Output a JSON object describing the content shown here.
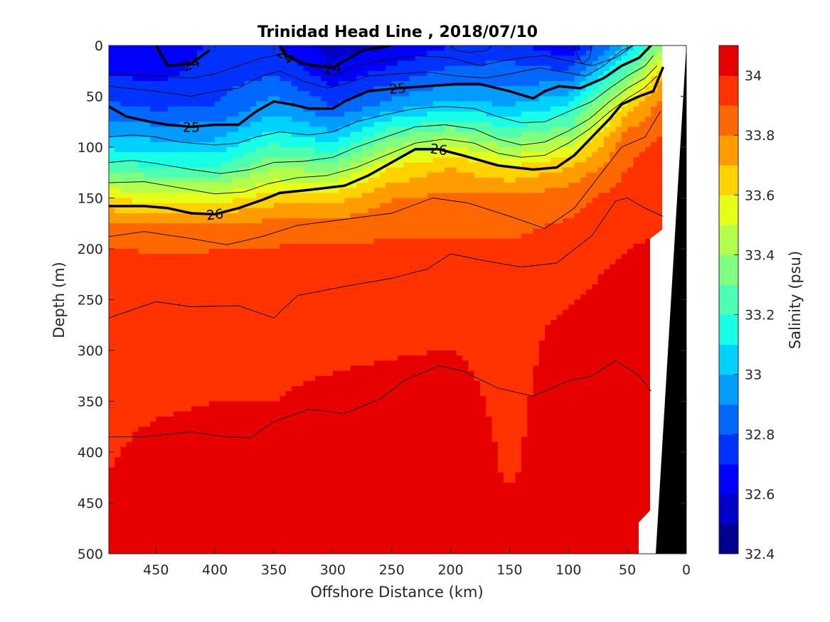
{
  "chart_data": {
    "type": "heatmap",
    "title": "Trinidad Head Line , 2018/07/10",
    "xlabel": "Offshore Distance (km)",
    "ylabel": "Depth (m)",
    "xlim": [
      490,
      0
    ],
    "x_reversed": true,
    "ylim": [
      0,
      500
    ],
    "y_reversed": true,
    "x_ticks": [
      450,
      400,
      350,
      300,
      250,
      200,
      150,
      100,
      50,
      0
    ],
    "y_ticks": [
      0,
      50,
      100,
      150,
      200,
      250,
      300,
      350,
      400,
      450,
      500
    ],
    "grid": false,
    "colorbar": {
      "label": "Salinity (psu)",
      "range": [
        32.4,
        34.1
      ],
      "levels": [
        32.4,
        32.5,
        32.6,
        32.7,
        32.8,
        32.9,
        33.0,
        33.1,
        33.2,
        33.3,
        33.4,
        33.5,
        33.6,
        33.7,
        33.8,
        33.9,
        34.0,
        34.1
      ],
      "ticks": [
        "32.4",
        "32.6",
        "32.8",
        "33",
        "33.2",
        "33.4",
        "33.6",
        "33.8",
        "34"
      ],
      "colors": [
        "#00008f",
        "#0000c8",
        "#0000ff",
        "#0032ff",
        "#0068ff",
        "#009cff",
        "#00d2ff",
        "#18ffe7",
        "#4cffb3",
        "#80ff80",
        "#b3ff4c",
        "#e7ff18",
        "#ffd200",
        "#ff9c00",
        "#ff6800",
        "#ff3200",
        "#e60000",
        "#a80000"
      ]
    },
    "salinity_depths": [
      0,
      30,
      60,
      90,
      120,
      150,
      180,
      220,
      280,
      350,
      420,
      500
    ],
    "salinity_profiles": [
      {
        "x": 490,
        "values": [
          32.65,
          32.7,
          32.82,
          33.0,
          33.25,
          33.6,
          33.85,
          33.95,
          33.96,
          33.98,
          34.0,
          34.03
        ]
      },
      {
        "x": 450,
        "values": [
          32.6,
          32.68,
          32.78,
          32.98,
          33.2,
          33.55,
          33.84,
          33.94,
          33.96,
          33.99,
          34.03,
          34.05
        ]
      },
      {
        "x": 400,
        "values": [
          32.72,
          32.75,
          32.8,
          32.98,
          33.2,
          33.55,
          33.85,
          33.94,
          33.96,
          34.0,
          34.04,
          34.06
        ]
      },
      {
        "x": 350,
        "values": [
          32.7,
          32.8,
          32.95,
          33.15,
          33.4,
          33.65,
          33.86,
          33.95,
          33.97,
          34.0,
          34.04,
          34.06
        ]
      },
      {
        "x": 300,
        "values": [
          32.55,
          32.65,
          32.8,
          33.05,
          33.35,
          33.65,
          33.87,
          33.95,
          33.97,
          34.02,
          34.05,
          34.07
        ]
      },
      {
        "x": 250,
        "values": [
          32.6,
          32.75,
          32.95,
          33.3,
          33.6,
          33.8,
          33.88,
          33.95,
          33.98,
          34.03,
          34.05,
          34.08
        ]
      },
      {
        "x": 200,
        "values": [
          32.7,
          32.85,
          33.05,
          33.4,
          33.7,
          33.82,
          33.88,
          33.95,
          33.99,
          34.03,
          34.05,
          34.08
        ]
      },
      {
        "x": 150,
        "values": [
          32.75,
          32.85,
          33.0,
          33.3,
          33.6,
          33.82,
          33.88,
          33.95,
          33.97,
          33.98,
          33.99,
          34.05
        ]
      },
      {
        "x": 100,
        "values": [
          32.6,
          32.85,
          33.1,
          33.4,
          33.7,
          33.86,
          33.92,
          33.97,
          34.02,
          34.04,
          34.05,
          34.08
        ]
      },
      {
        "x": 50,
        "values": [
          33.0,
          33.3,
          33.65,
          33.85,
          33.9,
          33.95,
          33.98,
          34.02,
          34.03,
          34.04,
          34.05,
          34.06
        ]
      },
      {
        "x": 20,
        "values": [
          33.4,
          33.7,
          33.85,
          33.9,
          33.95,
          33.98,
          34.0,
          34.02,
          34.03,
          34.04,
          34.05,
          34.06
        ]
      }
    ],
    "density_contours": [
      {
        "label": "24",
        "bold": true,
        "points": [
          [
            450,
            0
          ],
          [
            440,
            20
          ],
          [
            420,
            18
          ],
          [
            405,
            5
          ]
        ]
      },
      {
        "label": "24",
        "bold": true,
        "points": [
          [
            345,
            0
          ],
          [
            340,
            10
          ],
          [
            325,
            18
          ],
          [
            300,
            22
          ],
          [
            290,
            15
          ],
          [
            275,
            5
          ],
          [
            250,
            0
          ]
        ]
      },
      {
        "label": "24",
        "bold": false,
        "points": [
          [
            200,
            0
          ],
          [
            195,
            5
          ],
          [
            185,
            7
          ],
          [
            170,
            5
          ],
          [
            165,
            0
          ]
        ]
      },
      {
        "label": "24",
        "bold": false,
        "points": [
          [
            95,
            0
          ],
          [
            92,
            12
          ],
          [
            88,
            18
          ],
          [
            82,
            12
          ],
          [
            80,
            0
          ]
        ]
      },
      {
        "label": "25",
        "bold": true,
        "points": [
          [
            490,
            60
          ],
          [
            475,
            70
          ],
          [
            455,
            75
          ],
          [
            440,
            78
          ],
          [
            420,
            80
          ],
          [
            400,
            78
          ],
          [
            380,
            78
          ],
          [
            365,
            65
          ],
          [
            350,
            55
          ],
          [
            335,
            58
          ],
          [
            320,
            62
          ],
          [
            300,
            62
          ],
          [
            290,
            55
          ],
          [
            270,
            45
          ],
          [
            245,
            42
          ],
          [
            220,
            40
          ],
          [
            195,
            38
          ],
          [
            175,
            38
          ],
          [
            150,
            45
          ],
          [
            130,
            52
          ],
          [
            120,
            45
          ],
          [
            108,
            40
          ],
          [
            90,
            42
          ],
          [
            70,
            32
          ],
          [
            55,
            20
          ],
          [
            40,
            12
          ],
          [
            30,
            0
          ]
        ]
      },
      {
        "label": "26",
        "bold": true,
        "points": [
          [
            490,
            158
          ],
          [
            460,
            158
          ],
          [
            440,
            160
          ],
          [
            420,
            165
          ],
          [
            400,
            166
          ],
          [
            380,
            160
          ],
          [
            360,
            152
          ],
          [
            345,
            145
          ],
          [
            320,
            142
          ],
          [
            290,
            138
          ],
          [
            270,
            128
          ],
          [
            250,
            115
          ],
          [
            230,
            102
          ],
          [
            210,
            102
          ],
          [
            190,
            108
          ],
          [
            160,
            118
          ],
          [
            130,
            122
          ],
          [
            110,
            120
          ],
          [
            95,
            108
          ],
          [
            80,
            90
          ],
          [
            65,
            72
          ],
          [
            55,
            58
          ],
          [
            40,
            50
          ],
          [
            28,
            45
          ],
          [
            20,
            22
          ]
        ]
      },
      {
        "label": "",
        "bold": false,
        "points": [
          [
            490,
            188
          ],
          [
            460,
            183
          ],
          [
            420,
            190
          ],
          [
            390,
            196
          ],
          [
            360,
            188
          ],
          [
            330,
            177
          ],
          [
            290,
            171
          ],
          [
            250,
            165
          ],
          [
            215,
            150
          ],
          [
            185,
            155
          ],
          [
            150,
            168
          ],
          [
            120,
            180
          ],
          [
            95,
            160
          ],
          [
            75,
            130
          ],
          [
            55,
            100
          ],
          [
            35,
            90
          ],
          [
            22,
            65
          ]
        ]
      },
      {
        "label": "",
        "bold": false,
        "points": [
          [
            490,
            268
          ],
          [
            450,
            252
          ],
          [
            420,
            257
          ],
          [
            380,
            256
          ],
          [
            350,
            268
          ],
          [
            330,
            246
          ],
          [
            290,
            237
          ],
          [
            250,
            229
          ],
          [
            220,
            220
          ],
          [
            200,
            205
          ],
          [
            170,
            212
          ],
          [
            140,
            218
          ],
          [
            110,
            214
          ],
          [
            80,
            187
          ],
          [
            60,
            153
          ],
          [
            50,
            150
          ],
          [
            35,
            160
          ],
          [
            20,
            168
          ]
        ]
      },
      {
        "label": "",
        "bold": false,
        "points": [
          [
            490,
            385
          ],
          [
            460,
            385
          ],
          [
            420,
            380
          ],
          [
            390,
            385
          ],
          [
            370,
            386
          ],
          [
            350,
            370
          ],
          [
            320,
            358
          ],
          [
            290,
            362
          ],
          [
            260,
            348
          ],
          [
            240,
            330
          ],
          [
            210,
            315
          ],
          [
            190,
            320
          ],
          [
            160,
            337
          ],
          [
            130,
            345
          ],
          [
            100,
            330
          ],
          [
            80,
            325
          ],
          [
            60,
            310
          ],
          [
            40,
            325
          ],
          [
            30,
            340
          ]
        ]
      },
      {
        "label": "",
        "bold": false,
        "points": [
          [
            490,
            28
          ],
          [
            450,
            30
          ],
          [
            420,
            32
          ],
          [
            400,
            28
          ],
          [
            380,
            20
          ],
          [
            360,
            12
          ],
          [
            340,
            8
          ],
          [
            320,
            20
          ],
          [
            300,
            30
          ],
          [
            280,
            20
          ],
          [
            260,
            15
          ],
          [
            230,
            10
          ],
          [
            200,
            12
          ],
          [
            175,
            20
          ],
          [
            160,
            16
          ],
          [
            140,
            12
          ],
          [
            120,
            10
          ],
          [
            100,
            15
          ],
          [
            80,
            20
          ],
          [
            60,
            12
          ],
          [
            45,
            0
          ]
        ]
      },
      {
        "label": "",
        "bold": false,
        "points": [
          [
            490,
            40
          ],
          [
            450,
            45
          ],
          [
            420,
            50
          ],
          [
            400,
            45
          ],
          [
            380,
            42
          ],
          [
            360,
            30
          ],
          [
            345,
            25
          ],
          [
            325,
            35
          ],
          [
            305,
            42
          ],
          [
            290,
            38
          ],
          [
            270,
            30
          ],
          [
            245,
            28
          ],
          [
            220,
            26
          ],
          [
            195,
            30
          ],
          [
            170,
            32
          ],
          [
            150,
            28
          ],
          [
            125,
            22
          ],
          [
            105,
            26
          ],
          [
            85,
            30
          ],
          [
            70,
            20
          ],
          [
            55,
            5
          ],
          [
            45,
            0
          ]
        ]
      },
      {
        "label": "",
        "bold": false,
        "points": [
          [
            490,
            90
          ],
          [
            470,
            88
          ],
          [
            450,
            90
          ],
          [
            430,
            95
          ],
          [
            400,
            98
          ],
          [
            380,
            96
          ],
          [
            365,
            90
          ],
          [
            345,
            85
          ],
          [
            320,
            88
          ],
          [
            300,
            85
          ],
          [
            280,
            75
          ],
          [
            255,
            68
          ],
          [
            230,
            62
          ],
          [
            205,
            60
          ],
          [
            180,
            62
          ],
          [
            160,
            70
          ],
          [
            140,
            76
          ],
          [
            120,
            75
          ],
          [
            100,
            65
          ],
          [
            80,
            55
          ],
          [
            65,
            42
          ],
          [
            50,
            30
          ],
          [
            35,
            20
          ],
          [
            28,
            10
          ]
        ]
      },
      {
        "label": "",
        "bold": false,
        "points": [
          [
            490,
            115
          ],
          [
            470,
            113
          ],
          [
            450,
            116
          ],
          [
            420,
            122
          ],
          [
            395,
            126
          ],
          [
            370,
            122
          ],
          [
            350,
            115
          ],
          [
            325,
            114
          ],
          [
            300,
            110
          ],
          [
            280,
            100
          ],
          [
            255,
            90
          ],
          [
            230,
            80
          ],
          [
            205,
            78
          ],
          [
            180,
            82
          ],
          [
            160,
            92
          ],
          [
            140,
            98
          ],
          [
            120,
            95
          ],
          [
            100,
            84
          ],
          [
            82,
            72
          ],
          [
            65,
            55
          ],
          [
            50,
            42
          ],
          [
            35,
            32
          ],
          [
            25,
            20
          ]
        ]
      },
      {
        "label": "",
        "bold": false,
        "points": [
          [
            490,
            135
          ],
          [
            460,
            134
          ],
          [
            430,
            140
          ],
          [
            400,
            146
          ],
          [
            375,
            144
          ],
          [
            355,
            136
          ],
          [
            330,
            130
          ],
          [
            305,
            128
          ],
          [
            280,
            120
          ],
          [
            255,
            108
          ],
          [
            230,
            96
          ],
          [
            205,
            92
          ],
          [
            180,
            96
          ],
          [
            160,
            106
          ],
          [
            140,
            110
          ],
          [
            120,
            108
          ],
          [
            100,
            96
          ],
          [
            82,
            82
          ],
          [
            66,
            66
          ],
          [
            50,
            52
          ],
          [
            36,
            42
          ],
          [
            25,
            30
          ]
        ]
      }
    ]
  }
}
